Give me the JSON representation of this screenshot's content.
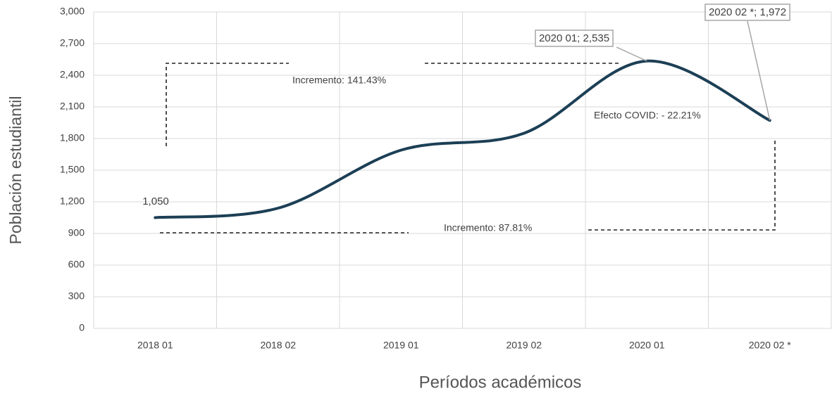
{
  "chart_data": {
    "type": "line",
    "x_label": "Períodos académicos",
    "y_label": "Población estudiantil",
    "categories": [
      "2018 01",
      "2018 02",
      "2019 01",
      "2019 02",
      "2020 01",
      "2020 02 *"
    ],
    "series": [
      {
        "name": "Población estudiantil",
        "color": "#1c3f55",
        "values": [
          1050,
          1140,
          1690,
          1850,
          2535,
          1972
        ],
        "value_labels": [
          "1,050",
          null,
          null,
          null,
          "2020 01; 2,535",
          "2020 02 *; 1,972"
        ]
      }
    ],
    "ylim": [
      0,
      3000
    ],
    "yticks": [
      0,
      300,
      600,
      900,
      {
        "value": 1200,
        "label": "1,200"
      },
      {
        "value": 1500,
        "label": "1,500"
      },
      {
        "value": 1800,
        "label": "1,800"
      },
      {
        "value": 2100,
        "label": "2,100"
      },
      {
        "value": 2400,
        "label": "2,400"
      },
      {
        "value": 2700,
        "label": "2,700"
      },
      {
        "value": 3000,
        "label": "3,000"
      }
    ],
    "grid": true,
    "smooth": true,
    "annotations": [
      "Incremento: 141.43%",
      "Incremento: 87.81%",
      "Efecto COVID: - 22.21%"
    ]
  }
}
